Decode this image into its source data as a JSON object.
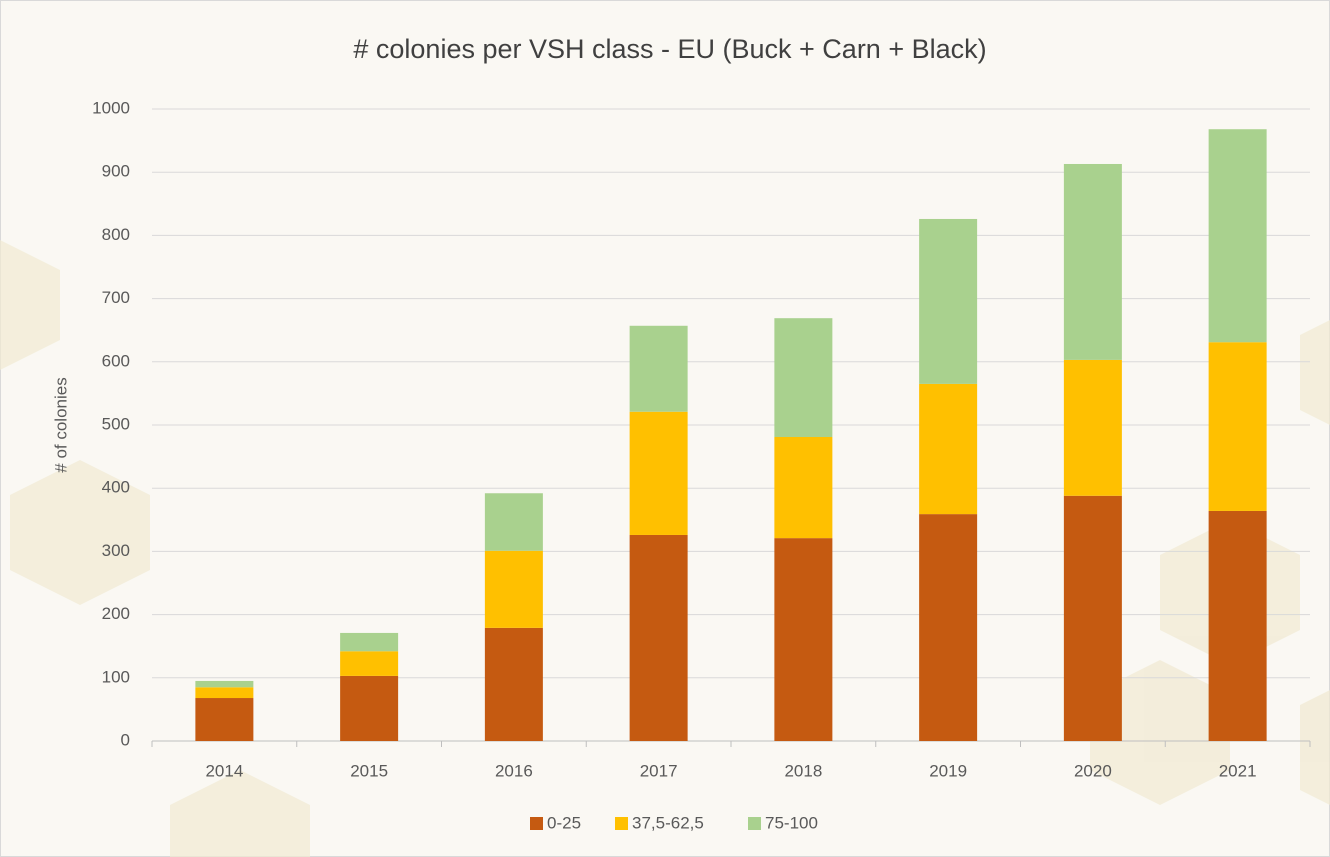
{
  "chart_data": {
    "type": "stacked_bar",
    "title": "# colonies per VSH class - EU (Buck + Carn + Black)",
    "y_label": "# of colonies",
    "categories": [
      "2014",
      "2015",
      "2016",
      "2017",
      "2018",
      "2019",
      "2020",
      "2021"
    ],
    "series": [
      {
        "name": "0-25",
        "color": "#c55a11",
        "values": [
          68,
          103,
          179,
          326,
          321,
          359,
          388,
          364
        ]
      },
      {
        "name": "37,5-62,5",
        "color": "#ffc000",
        "values": [
          17,
          39,
          122,
          195,
          160,
          206,
          215,
          267
        ]
      },
      {
        "name": "75-100",
        "color": "#a9d18e",
        "values": [
          10,
          29,
          91,
          136,
          188,
          261,
          310,
          337
        ]
      }
    ],
    "ylim": [
      0,
      1000
    ],
    "yticks": [
      0,
      100,
      200,
      300,
      400,
      500,
      600,
      700,
      800,
      900,
      1000
    ],
    "grid": true,
    "legend": "bottom"
  }
}
